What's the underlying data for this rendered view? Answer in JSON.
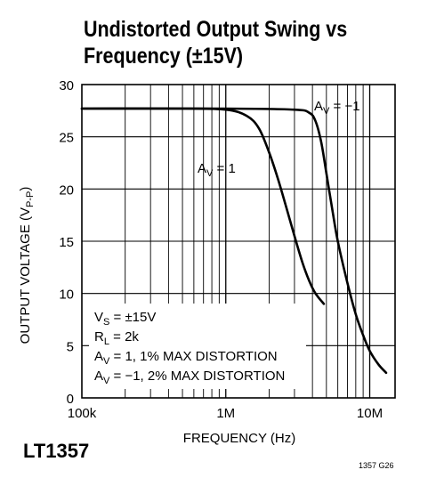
{
  "chart_data": {
    "type": "line",
    "title_line1": "Undistorted Output Swing vs",
    "title_line2": "Frequency (±15V)",
    "xlabel": "FREQUENCY (Hz)",
    "ylabel": "OUTPUT VOLTAGE (V",
    "ylabel_sub": "P-P",
    "ylabel_end": ")",
    "x_scale": "log",
    "xlim": [
      100000,
      15000000
    ],
    "ylim": [
      0,
      30
    ],
    "grid": true,
    "x_tick_labels": [
      {
        "value": 100000,
        "label": "100k"
      },
      {
        "value": 1000000,
        "label": "1M"
      },
      {
        "value": 10000000,
        "label": "10M"
      }
    ],
    "y_ticks": [
      0,
      5,
      10,
      15,
      20,
      25,
      30
    ],
    "series": [
      {
        "name": "A_V = 1",
        "label_main": "A",
        "label_sub": "V",
        "label_rest": " = 1",
        "x": [
          100000,
          500000,
          1000000,
          1400000,
          1700000,
          2000000,
          2300000,
          2600000,
          3000000,
          3400000,
          3800000,
          4200000,
          4800000
        ],
        "y": [
          27.7,
          27.7,
          27.6,
          27.0,
          25.8,
          23.5,
          21.0,
          18.5,
          15.5,
          13.0,
          11.2,
          10.0,
          9.0
        ]
      },
      {
        "name": "A_V = -1",
        "label_main": "A",
        "label_sub": "V",
        "label_rest": " = −1",
        "x": [
          100000,
          1000000,
          3000000,
          3800000,
          4200000,
          4600000,
          5000000,
          5500000,
          6000000,
          7000000,
          8000000,
          9000000,
          10000000,
          11500000,
          13000000
        ],
        "y": [
          27.7,
          27.7,
          27.6,
          27.3,
          26.5,
          24.5,
          21.5,
          18.0,
          15.0,
          11.0,
          8.0,
          6.0,
          4.5,
          3.2,
          2.4
        ]
      }
    ],
    "annotation_lines": [
      {
        "main": "V",
        "sub": "S",
        "rest": " = ±15V"
      },
      {
        "main": "R",
        "sub": "L",
        "rest": " = 2k"
      },
      {
        "main": "A",
        "sub": "V",
        "rest": " = 1, 1% MAX DISTORTION"
      },
      {
        "main": "A",
        "sub": "V",
        "rest": " = −1, 2% MAX DISTORTION"
      }
    ]
  },
  "part_number": "LT1357",
  "figure_code": "1357 G26"
}
